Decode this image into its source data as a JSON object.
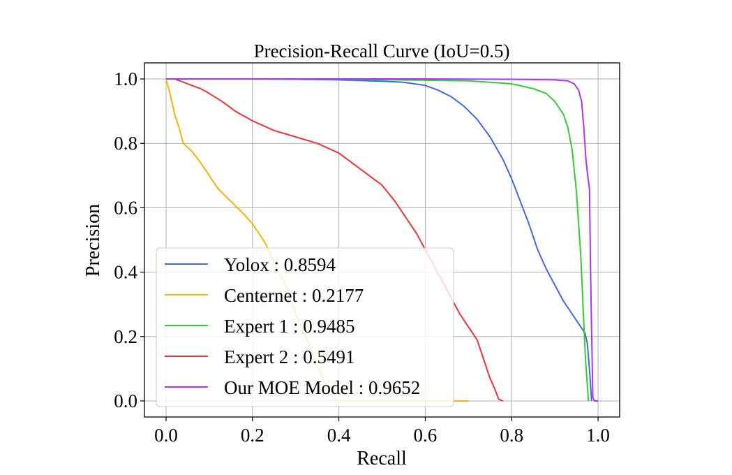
{
  "chart_data": {
    "type": "line",
    "title": "Precision-Recall Curve (IoU=0.5)",
    "xlabel": "Recall",
    "ylabel": "Precision",
    "xlim": [
      -0.05,
      1.05
    ],
    "ylim": [
      -0.05,
      1.05
    ],
    "xticks": [
      0.0,
      0.2,
      0.4,
      0.6,
      0.8,
      1.0
    ],
    "xtick_labels": [
      "0.0",
      "0.2",
      "0.4",
      "0.6",
      "0.8",
      "1.0"
    ],
    "yticks": [
      0.0,
      0.2,
      0.4,
      0.6,
      0.8,
      1.0
    ],
    "ytick_labels": [
      "0.0",
      "0.2",
      "0.4",
      "0.6",
      "0.8",
      "1.0"
    ],
    "grid": true,
    "legend_position": "lower-left",
    "series": [
      {
        "name": "Yolox : 0.8594",
        "color": "#4169e1",
        "x": [
          0.0,
          0.1,
          0.2,
          0.3,
          0.4,
          0.5,
          0.55,
          0.6,
          0.63,
          0.66,
          0.69,
          0.72,
          0.75,
          0.78,
          0.8,
          0.82,
          0.84,
          0.86,
          0.88,
          0.9,
          0.92,
          0.94,
          0.96,
          0.97,
          0.975,
          0.98,
          0.985
        ],
        "y": [
          1.0,
          1.0,
          1.0,
          0.999,
          0.997,
          0.993,
          0.99,
          0.98,
          0.965,
          0.945,
          0.915,
          0.875,
          0.82,
          0.75,
          0.69,
          0.62,
          0.55,
          0.47,
          0.41,
          0.36,
          0.31,
          0.27,
          0.23,
          0.21,
          0.18,
          0.1,
          0.0
        ]
      },
      {
        "name": "Centernet : 0.2177",
        "color": "#ffb000",
        "x": [
          0.0,
          0.01,
          0.02,
          0.03,
          0.04,
          0.06,
          0.08,
          0.1,
          0.12,
          0.15,
          0.18,
          0.2,
          0.23,
          0.25,
          0.28,
          0.3,
          0.33,
          0.35,
          0.37,
          0.39,
          0.4,
          0.5,
          0.6,
          0.7
        ],
        "y": [
          1.0,
          0.95,
          0.89,
          0.85,
          0.8,
          0.775,
          0.74,
          0.7,
          0.66,
          0.62,
          0.58,
          0.55,
          0.49,
          0.43,
          0.35,
          0.27,
          0.18,
          0.11,
          0.05,
          0.005,
          0.0,
          0.0,
          0.0,
          0.0
        ]
      },
      {
        "name": "Expert 1 : 0.9485",
        "color": "#33cc33",
        "x": [
          0.0,
          0.2,
          0.4,
          0.6,
          0.7,
          0.75,
          0.8,
          0.85,
          0.88,
          0.9,
          0.92,
          0.93,
          0.94,
          0.95,
          0.96,
          0.965,
          0.97,
          0.975,
          0.978
        ],
        "y": [
          1.0,
          1.0,
          0.999,
          0.996,
          0.994,
          0.99,
          0.985,
          0.97,
          0.955,
          0.93,
          0.89,
          0.85,
          0.78,
          0.65,
          0.45,
          0.3,
          0.15,
          0.05,
          0.0
        ]
      },
      {
        "name": "Expert 2 : 0.5491",
        "color": "#ee3333",
        "x": [
          0.0,
          0.02,
          0.05,
          0.08,
          0.1,
          0.13,
          0.16,
          0.2,
          0.25,
          0.3,
          0.35,
          0.4,
          0.45,
          0.5,
          0.53,
          0.56,
          0.58,
          0.6,
          0.62,
          0.64,
          0.66,
          0.68,
          0.7,
          0.72,
          0.73,
          0.74,
          0.75,
          0.76,
          0.77,
          0.78
        ],
        "y": [
          1.0,
          1.0,
          0.985,
          0.97,
          0.955,
          0.93,
          0.9,
          0.87,
          0.84,
          0.82,
          0.8,
          0.77,
          0.72,
          0.67,
          0.62,
          0.56,
          0.52,
          0.47,
          0.42,
          0.37,
          0.32,
          0.27,
          0.23,
          0.19,
          0.15,
          0.11,
          0.07,
          0.04,
          0.005,
          0.0
        ]
      },
      {
        "name": "Our MOE Model : 0.9652",
        "color": "#aa33ff",
        "x": [
          0.0,
          0.2,
          0.4,
          0.6,
          0.8,
          0.9,
          0.93,
          0.945,
          0.955,
          0.962,
          0.967,
          0.972,
          0.976,
          0.98,
          0.984,
          0.988,
          0.992,
          1.0
        ],
        "y": [
          1.0,
          1.0,
          1.0,
          1.0,
          0.999,
          0.997,
          0.994,
          0.985,
          0.965,
          0.93,
          0.85,
          0.75,
          0.7,
          0.66,
          0.3,
          0.01,
          0.0,
          0.0
        ]
      }
    ]
  }
}
